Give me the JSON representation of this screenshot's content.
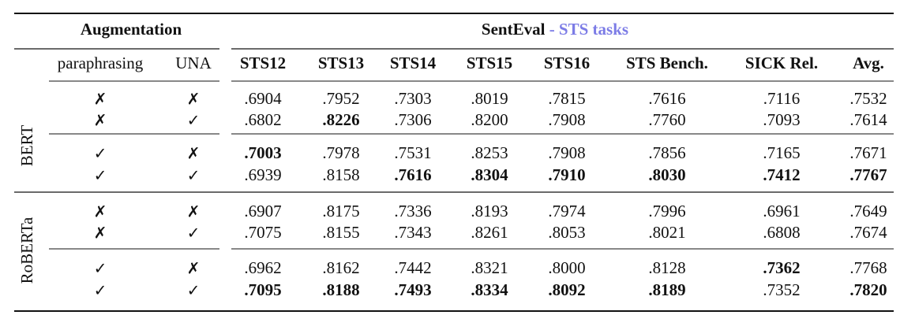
{
  "header": {
    "augmentation": "Augmentation",
    "benchmark": "SentEval",
    "benchmark_sub": "- STS tasks"
  },
  "columns": [
    "paraphrasing",
    "UNA",
    "STS12",
    "STS13",
    "STS14",
    "STS15",
    "STS16",
    "STS Bench.",
    "SICK Rel.",
    "Avg."
  ],
  "groups": [
    {
      "model": "BERT",
      "rows": [
        {
          "paraphrasing": "✗",
          "una": "✗",
          "values": [
            ".6904",
            ".7952",
            ".7303",
            ".8019",
            ".7815",
            ".7616",
            ".7116",
            ".7532"
          ],
          "bold": []
        },
        {
          "paraphrasing": "✗",
          "una": "✓",
          "values": [
            ".6802",
            ".8226",
            ".7306",
            ".8200",
            ".7908",
            ".7760",
            ".7093",
            ".7614"
          ],
          "bold": [
            1
          ]
        },
        {
          "paraphrasing": "✓",
          "una": "✗",
          "values": [
            ".7003",
            ".7978",
            ".7531",
            ".8253",
            ".7908",
            ".7856",
            ".7165",
            ".7671"
          ],
          "bold": [
            0
          ]
        },
        {
          "paraphrasing": "✓",
          "una": "✓",
          "values": [
            ".6939",
            ".8158",
            ".7616",
            ".8304",
            ".7910",
            ".8030",
            ".7412",
            ".7767"
          ],
          "bold": [
            2,
            3,
            4,
            5,
            6,
            7
          ]
        }
      ]
    },
    {
      "model": "RoBERTa",
      "rows": [
        {
          "paraphrasing": "✗",
          "una": "✗",
          "values": [
            ".6907",
            ".8175",
            ".7336",
            ".8193",
            ".7974",
            ".7996",
            ".6961",
            ".7649"
          ],
          "bold": []
        },
        {
          "paraphrasing": "✗",
          "una": "✓",
          "values": [
            ".7075",
            ".8155",
            ".7343",
            ".8261",
            ".8053",
            ".8021",
            ".6808",
            ".7674"
          ],
          "bold": []
        },
        {
          "paraphrasing": "✓",
          "una": "✗",
          "values": [
            ".6962",
            ".8162",
            ".7442",
            ".8321",
            ".8000",
            ".8128",
            ".7362",
            ".7768"
          ],
          "bold": [
            6
          ]
        },
        {
          "paraphrasing": "✓",
          "una": "✓",
          "values": [
            ".7095",
            ".8188",
            ".7493",
            ".8334",
            ".8092",
            ".8189",
            ".7352",
            ".7820"
          ],
          "bold": [
            0,
            1,
            2,
            3,
            4,
            5,
            7
          ]
        }
      ]
    }
  ]
}
